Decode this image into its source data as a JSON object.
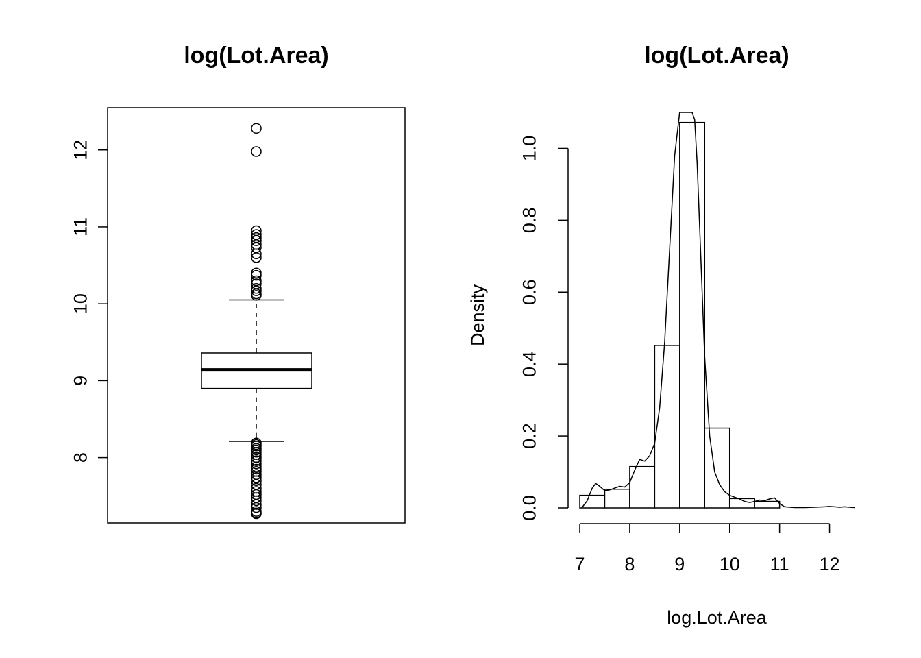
{
  "chart_data": [
    {
      "type": "box",
      "title": "log(Lot.Area)",
      "xlabel": "",
      "ylabel": "",
      "ylim": [
        7.15,
        12.55
      ],
      "yticks": [
        8,
        9,
        10,
        11,
        12
      ],
      "box": {
        "whisker_low": 8.21,
        "q1": 8.9,
        "median": 9.14,
        "q3": 9.36,
        "whisker_high": 10.05
      },
      "outliers": [
        12.28,
        11.98,
        10.95,
        10.9,
        10.86,
        10.82,
        10.77,
        10.73,
        10.65,
        10.6,
        10.4,
        10.37,
        10.3,
        10.26,
        10.2,
        10.17,
        10.13,
        10.11,
        8.19,
        8.17,
        8.15,
        8.12,
        8.1,
        8.07,
        8.04,
        8.0,
        7.96,
        7.92,
        7.88,
        7.85,
        7.82,
        7.78,
        7.74,
        7.7,
        7.65,
        7.6,
        7.56,
        7.52,
        7.48,
        7.44,
        7.39,
        7.35,
        7.3,
        7.28,
        7.27
      ]
    },
    {
      "type": "histogram",
      "title": "log(Lot.Area)",
      "xlabel": "log.Lot.Area",
      "ylabel": "Density",
      "xlim": [
        7,
        12.5
      ],
      "ylim": [
        0,
        1.1
      ],
      "xticks": [
        7,
        8,
        9,
        10,
        11,
        12
      ],
      "yticks": [
        "0.0",
        "0.2",
        "0.4",
        "0.6",
        "0.8",
        "1.0"
      ],
      "bins": [
        7,
        7.5,
        8,
        8.5,
        9,
        9.5,
        10,
        10.5,
        11,
        11.5,
        12,
        12.5
      ],
      "density": [
        0.035,
        0.052,
        0.115,
        0.452,
        1.072,
        0.222,
        0.026,
        0.018,
        0.0,
        0.0,
        0.0
      ],
      "density_curve": {
        "x": [
          7.04,
          7.15,
          7.25,
          7.32,
          7.4,
          7.5,
          7.6,
          7.7,
          7.8,
          7.9,
          8.0,
          8.1,
          8.2,
          8.3,
          8.4,
          8.5,
          8.6,
          8.7,
          8.8,
          8.9,
          9.0,
          9.05,
          9.1,
          9.15,
          9.2,
          9.25,
          9.3,
          9.35,
          9.4,
          9.5,
          9.6,
          9.7,
          9.8,
          9.9,
          10.0,
          10.1,
          10.2,
          10.3,
          10.4,
          10.5,
          10.6,
          10.7,
          10.8,
          10.9,
          11.0,
          11.1,
          11.3,
          11.5,
          11.7,
          11.9,
          12.0,
          12.1,
          12.2,
          12.3,
          12.4,
          12.5
        ],
        "y": [
          0.0,
          0.02,
          0.055,
          0.068,
          0.06,
          0.048,
          0.05,
          0.055,
          0.06,
          0.058,
          0.07,
          0.105,
          0.135,
          0.13,
          0.145,
          0.18,
          0.28,
          0.46,
          0.72,
          0.98,
          1.1,
          1.1,
          1.1,
          1.1,
          1.1,
          1.1,
          1.08,
          0.96,
          0.78,
          0.42,
          0.2,
          0.1,
          0.065,
          0.045,
          0.035,
          0.03,
          0.025,
          0.018,
          0.015,
          0.018,
          0.022,
          0.02,
          0.025,
          0.028,
          0.012,
          0.003,
          0.001,
          0.001,
          0.002,
          0.003,
          0.004,
          0.003,
          0.002,
          0.003,
          0.002,
          0.001
        ]
      }
    }
  ]
}
